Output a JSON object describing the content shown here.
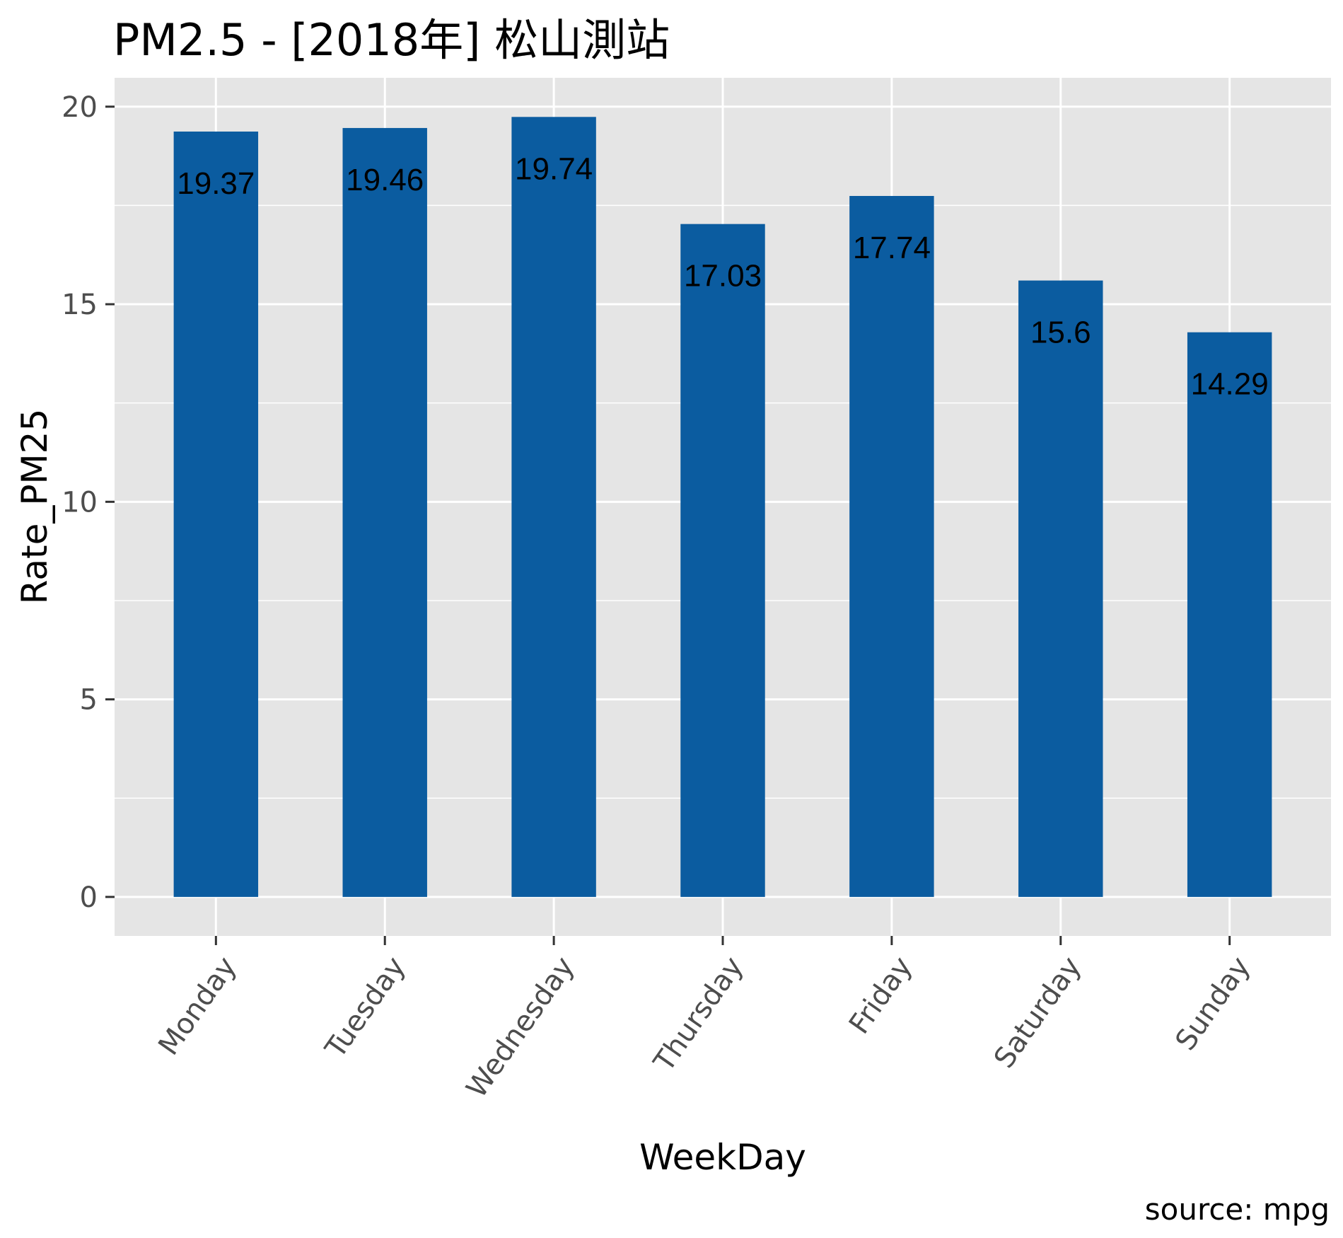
{
  "chart_data": {
    "type": "bar",
    "title": "PM2.5 - [2018年]   松山測站",
    "xlabel": "WeekDay",
    "ylabel": "Rate_PM25",
    "caption": "source: mpg",
    "categories": [
      "Monday",
      "Tuesday",
      "Wednesday",
      "Thursday",
      "Friday",
      "Saturday",
      "Sunday"
    ],
    "values": [
      19.37,
      19.46,
      19.74,
      17.03,
      17.74,
      15.6,
      14.29
    ],
    "data_labels": [
      "19.37",
      "19.46",
      "19.74",
      "17.03",
      "17.74",
      "15.6",
      "14.29"
    ],
    "y_ticks": [
      0,
      5,
      10,
      15,
      20
    ],
    "y_tick_labels": [
      "0",
      "5",
      "10",
      "15",
      "20"
    ],
    "ylim": [
      -0.987,
      20.73
    ],
    "grid": true,
    "legend": "none",
    "colors": {
      "bar": "#0B5CA0",
      "panel_background": "#E5E5E5",
      "grid": "#FFFFFF",
      "axis_text": "#4D4D4D",
      "tick": "#333333"
    }
  }
}
